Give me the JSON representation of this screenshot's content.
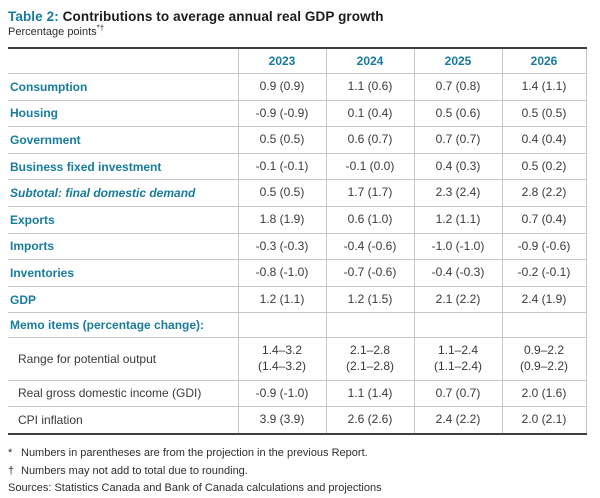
{
  "colors": {
    "teal": "#177c9e",
    "text": "#3a3a3a",
    "grid": "#c6c6c6",
    "rule": "#3f3f3f"
  },
  "title": {
    "prefix": "Table 2:",
    "text": " Contributions to average annual real GDP growth"
  },
  "subtitle": {
    "text": "Percentage points",
    "markers": "*†"
  },
  "table": {
    "columns": [
      "2023",
      "2024",
      "2025",
      "2026"
    ],
    "rows": [
      {
        "label": "Consumption",
        "style": "main",
        "values": [
          "0.9 (0.9)",
          "1.1 (0.6)",
          "0.7 (0.8)",
          "1.4 (1.1)"
        ]
      },
      {
        "label": "Housing",
        "style": "main",
        "values": [
          "-0.9 (-0.9)",
          "0.1 (0.4)",
          "0.5 (0.6)",
          "0.5 (0.5)"
        ]
      },
      {
        "label": "Government",
        "style": "main",
        "values": [
          "0.5 (0.5)",
          "0.6 (0.7)",
          "0.7 (0.7)",
          "0.4 (0.4)"
        ]
      },
      {
        "label": "Business fixed investment",
        "style": "main",
        "values": [
          "-0.1 (-0.1)",
          "-0.1 (0.0)",
          "0.4 (0.3)",
          "0.5 (0.2)"
        ]
      },
      {
        "label": "Subtotal: final domestic demand",
        "style": "subtotal",
        "values": [
          "0.5 (0.5)",
          "1.7 (1.7)",
          "2.3 (2.4)",
          "2.8 (2.2)"
        ]
      },
      {
        "label": "Exports",
        "style": "main",
        "values": [
          "1.8 (1.9)",
          "0.6 (1.0)",
          "1.2 (1.1)",
          "0.7 (0.4)"
        ]
      },
      {
        "label": "Imports",
        "style": "main",
        "values": [
          "-0.3 (-0.3)",
          "-0.4 (-0.6)",
          "-1.0 (-1.0)",
          "-0.9 (-0.6)"
        ]
      },
      {
        "label": "Inventories",
        "style": "main",
        "values": [
          "-0.8 (-1.0)",
          "-0.7 (-0.6)",
          "-0.4 (-0.3)",
          "-0.2 (-0.1)"
        ]
      },
      {
        "label": "GDP",
        "style": "main",
        "values": [
          "1.2 (1.1)",
          "1.2 (1.5)",
          "2.1 (2.2)",
          "2.4 (1.9)"
        ]
      },
      {
        "label": "Memo items (percentage change):",
        "style": "main",
        "values": [
          "",
          "",
          "",
          ""
        ]
      },
      {
        "label": "Range for potential output",
        "style": "sub",
        "values": [
          "1.4–3.2\n(1.4–3.2)",
          "2.1–2.8\n(2.1–2.8)",
          "1.1–2.4\n(1.1–2.4)",
          "0.9–2.2\n(0.9–2.2)"
        ]
      },
      {
        "label": "Real gross domestic income (GDI)",
        "style": "sub",
        "values": [
          "-0.9 (-1.0)",
          "1.1 (1.4)",
          "0.7 (0.7)",
          "2.0 (1.6)"
        ]
      },
      {
        "label": "CPI inflation",
        "style": "sub",
        "values": [
          "3.9 (3.9)",
          "2.6 (2.6)",
          "2.4 (2.2)",
          "2.0 (2.1)"
        ]
      }
    ]
  },
  "footnotes": [
    {
      "marker": "*",
      "text": "Numbers in parentheses are from the projection in the previous Report."
    },
    {
      "marker": "†",
      "text": "Numbers may not add to total due to rounding."
    }
  ],
  "sources": "Sources: Statistics Canada and Bank of Canada calculations and projections"
}
